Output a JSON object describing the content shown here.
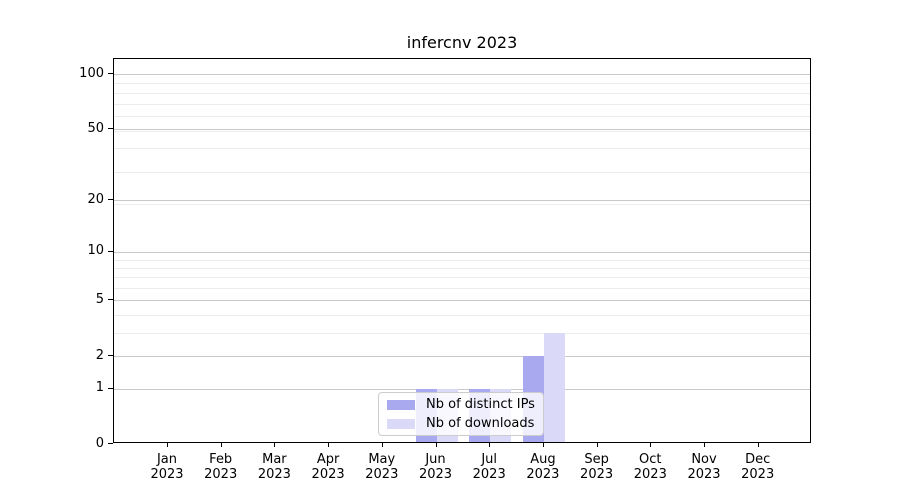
{
  "chart_data": {
    "type": "bar",
    "title": "infercnv 2023",
    "x_tick_labels": [
      [
        "Jan",
        "2023"
      ],
      [
        "Feb",
        "2023"
      ],
      [
        "Mar",
        "2023"
      ],
      [
        "Apr",
        "2023"
      ],
      [
        "May",
        "2023"
      ],
      [
        "Jun",
        "2023"
      ],
      [
        "Jul",
        "2023"
      ],
      [
        "Aug",
        "2023"
      ],
      [
        "Sep",
        "2023"
      ],
      [
        "Oct",
        "2023"
      ],
      [
        "Nov",
        "2023"
      ],
      [
        "Dec",
        "2023"
      ]
    ],
    "y_ticks": [
      0,
      1,
      2,
      5,
      10,
      20,
      50,
      100
    ],
    "y_scale": "log1p",
    "ylim": [
      0,
      120
    ],
    "grid": true,
    "legend_position": "lower center",
    "series": [
      {
        "name": "Nb of distinct IPs",
        "color": "#a9a9ef",
        "values": [
          0,
          0,
          0,
          0,
          0,
          1,
          1,
          2,
          0,
          0,
          0,
          0
        ]
      },
      {
        "name": "Nb of downloads",
        "color": "#dadaf8",
        "values": [
          0,
          0,
          0,
          0,
          0,
          1,
          1,
          3,
          0,
          0,
          0,
          0
        ]
      }
    ]
  }
}
